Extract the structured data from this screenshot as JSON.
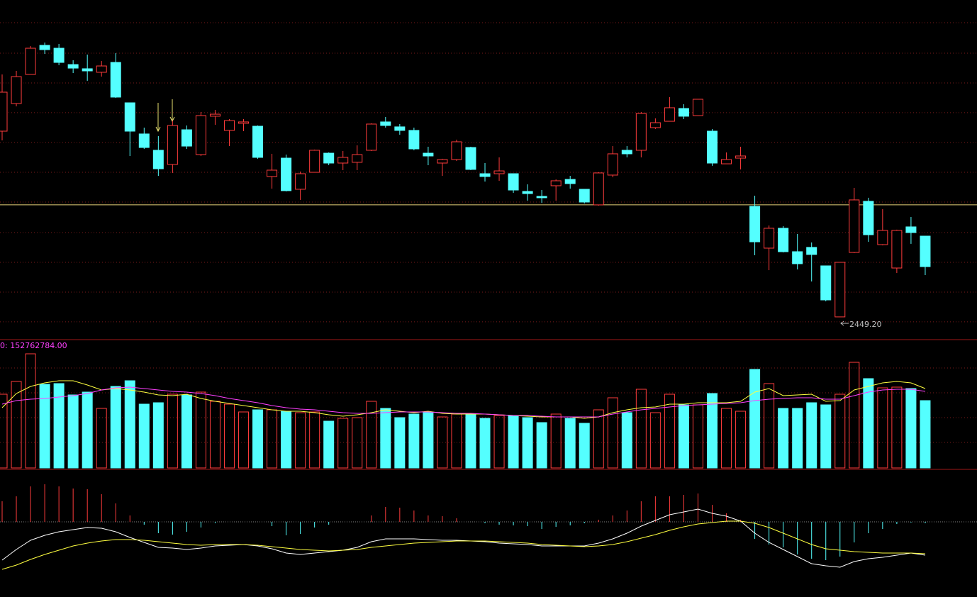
{
  "chart_data": [
    {
      "type": "candlestick",
      "ylim": [
        2428.7,
        2744.2
      ],
      "up_color": "#ff3c3c",
      "down_color": "#54ffff",
      "grid_lines": [
        2723.1,
        2694.7,
        2667.0,
        2639.3,
        2611.5,
        2583.8,
        2556.1,
        2527.7,
        2500.0,
        2472.3,
        2444.6
      ],
      "reference_line": 2553.5,
      "reference_color": "#e8d27a",
      "low_label": "2449.20",
      "open": [
        2622.1,
        2647.8,
        2674.9,
        2702.0,
        2699.3,
        2684.1,
        2680.2,
        2676.9,
        2686.1,
        2648.5,
        2619.5,
        2604.3,
        2591.1,
        2623.4,
        2600.3,
        2636.0,
        2622.8,
        2629.4,
        2626.7,
        2579.9,
        2597.0,
        2568.0,
        2583.8,
        2601.6,
        2592.4,
        2593.1,
        2604.3,
        2630.7,
        2626.1,
        2622.8,
        2601.6,
        2592.4,
        2595.7,
        2606.9,
        2582.5,
        2582.5,
        2582.5,
        2566.0,
        2561.4,
        2571.3,
        2577.2,
        2568.0,
        2553.5,
        2581.2,
        2604.3,
        2604.3,
        2625.4,
        2631.3,
        2643.2,
        2636.6,
        2622.1,
        2591.7,
        2597.0,
        2552.1,
        2513.2,
        2531.7,
        2509.9,
        2513.9,
        2496.7,
        2449.2,
        2509.2,
        2556.8,
        2516.5,
        2494.7,
        2533.0,
        2524.4
      ],
      "high": [
        2674.9,
        2678.2,
        2701.3,
        2704.6,
        2703.3,
        2688.1,
        2693.4,
        2687.4,
        2694.7,
        2648.5,
        2625.4,
        2617.5,
        2632.0,
        2627.4,
        2639.9,
        2641.9,
        2633.3,
        2633.3,
        2627.4,
        2601.0,
        2600.3,
        2584.5,
        2604.9,
        2602.3,
        2603.6,
        2608.9,
        2629.4,
        2635.3,
        2628.7,
        2625.4,
        2607.6,
        2596.4,
        2614.2,
        2607.6,
        2592.4,
        2597.7,
        2582.5,
        2572.6,
        2567.3,
        2577.2,
        2580.5,
        2568.0,
        2583.8,
        2608.2,
        2608.2,
        2639.9,
        2634.0,
        2653.8,
        2647.2,
        2651.8,
        2624.1,
        2602.3,
        2607.6,
        2562.0,
        2534.3,
        2533.7,
        2526.4,
        2518.5,
        2496.7,
        2500.0,
        2569.3,
        2560.1,
        2549.5,
        2530.4,
        2542.2,
        2524.4
      ],
      "low": [
        2613.5,
        2645.2,
        2674.9,
        2694.0,
        2683.5,
        2676.2,
        2669.0,
        2672.9,
        2653.1,
        2599.0,
        2605.6,
        2580.5,
        2583.2,
        2605.6,
        2599.0,
        2628.0,
        2608.2,
        2622.1,
        2596.4,
        2568.6,
        2566.0,
        2558.1,
        2583.8,
        2590.4,
        2585.8,
        2585.8,
        2603.6,
        2625.4,
        2618.8,
        2604.3,
        2590.4,
        2580.5,
        2594.4,
        2585.8,
        2575.2,
        2575.9,
        2564.7,
        2557.4,
        2555.4,
        2557.4,
        2568.6,
        2554.8,
        2552.8,
        2579.2,
        2597.7,
        2597.7,
        2624.1,
        2631.3,
        2633.3,
        2636.6,
        2589.8,
        2591.7,
        2586.5,
        2506.6,
        2492.7,
        2509.2,
        2493.4,
        2482.2,
        2463.7,
        2449.2,
        2508.6,
        2519.1,
        2515.8,
        2490.1,
        2517.2,
        2488.1
      ],
      "close": [
        2658.4,
        2672.9,
        2699.3,
        2698.0,
        2686.1,
        2680.8,
        2678.2,
        2682.8,
        2653.8,
        2622.1,
        2606.9,
        2587.1,
        2627.4,
        2608.2,
        2636.6,
        2637.9,
        2632.0,
        2630.7,
        2597.7,
        2585.8,
        2566.7,
        2582.5,
        2604.3,
        2592.4,
        2597.7,
        2600.3,
        2628.7,
        2627.4,
        2622.8,
        2605.6,
        2599.0,
        2595.7,
        2612.2,
        2586.5,
        2579.9,
        2585.1,
        2567.3,
        2564.0,
        2560.1,
        2575.9,
        2573.3,
        2556.1,
        2583.2,
        2601.0,
        2601.0,
        2638.6,
        2630.0,
        2643.9,
        2636.0,
        2651.8,
        2592.4,
        2595.7,
        2599.0,
        2519.1,
        2531.7,
        2509.9,
        2498.7,
        2507.3,
        2465.0,
        2500.0,
        2558.1,
        2525.7,
        2529.7,
        2529.7,
        2527.7,
        2496.0
      ]
    },
    {
      "type": "volume",
      "ylim": [
        0,
        289440000
      ],
      "label": "0: 152762784.00",
      "label_color": "#ff40ff",
      "grid_lines": [
        226728000,
        170448000,
        114168000,
        57888000
      ],
      "values": [
        167232000,
        196176000,
        258888000,
        189744000,
        191352000,
        165624000,
        172056000,
        135072000,
        184920000,
        197784000,
        144720000,
        147936000,
        167232000,
        165624000,
        172056000,
        151152000,
        144720000,
        127032000,
        131856000,
        131856000,
        128640000,
        125424000,
        127032000,
        106128000,
        112560000,
        114168000,
        151152000,
        135072000,
        114168000,
        122208000,
        125424000,
        115776000,
        122208000,
        122208000,
        112560000,
        118992000,
        118992000,
        114168000,
        102912000,
        122208000,
        112560000,
        101304000,
        131856000,
        159192000,
        125424000,
        178488000,
        125424000,
        167232000,
        143112000,
        143112000,
        168840000,
        135072000,
        128640000,
        223512000,
        191352000,
        135072000,
        135072000,
        147936000,
        143112000,
        167232000,
        239592000,
        202608000,
        181704000,
        183312000,
        180096000,
        152762784
      ],
      "series": [
        {
          "color": "#ffff40",
          "values": [
            136680000,
            168840000,
            184920000,
            192960000,
            197784000,
            197784000,
            188136000,
            176880000,
            180096000,
            176880000,
            172056000,
            165624000,
            164016000,
            167232000,
            157584000,
            151152000,
            146328000,
            141504000,
            136680000,
            131856000,
            128640000,
            128640000,
            125424000,
            120600000,
            117384000,
            120600000,
            125424000,
            131856000,
            128640000,
            125424000,
            128640000,
            123816000,
            122208000,
            122208000,
            122208000,
            120600000,
            118992000,
            117384000,
            115776000,
            115776000,
            115776000,
            112560000,
            115776000,
            125424000,
            131856000,
            136680000,
            138288000,
            144720000,
            144720000,
            147936000,
            147936000,
            147936000,
            151152000,
            172056000,
            180096000,
            164016000,
            165624000,
            167232000,
            151152000,
            152760000,
            176880000,
            184920000,
            192960000,
            196176000,
            192960000,
            180096000
          ]
        },
        {
          "color": "#ff40ff",
          "values": [
            144720000,
            152760000,
            155976000,
            157584000,
            160800000,
            164016000,
            168840000,
            176880000,
            181704000,
            183312000,
            180096000,
            176880000,
            173664000,
            172056000,
            168840000,
            164016000,
            157584000,
            152760000,
            147936000,
            141504000,
            136680000,
            133464000,
            131856000,
            128640000,
            125424000,
            123816000,
            123816000,
            125424000,
            127032000,
            127032000,
            127032000,
            125424000,
            123816000,
            123816000,
            122208000,
            120600000,
            118992000,
            118992000,
            117384000,
            115776000,
            115776000,
            115776000,
            115776000,
            122208000,
            127032000,
            131856000,
            135072000,
            138288000,
            141504000,
            143112000,
            144720000,
            146328000,
            147936000,
            152760000,
            155976000,
            157584000,
            159192000,
            159192000,
            155976000,
            155976000,
            164016000,
            172056000,
            176880000,
            178488000,
            178488000,
            173664000
          ]
        }
      ]
    },
    {
      "type": "macd",
      "ylim": [
        -53,
        36
      ],
      "histogram": [
        14.5,
        18,
        25,
        26.5,
        25,
        23.5,
        23,
        19.5,
        13,
        4.5,
        -2,
        -8,
        -9,
        -7,
        -4,
        -1,
        0,
        0,
        0,
        -3,
        -9.5,
        -8.5,
        -4,
        -2,
        0,
        0,
        4.5,
        10.5,
        10,
        8,
        4.5,
        4,
        2.5,
        0,
        -1,
        -2,
        -2.5,
        -3,
        -5,
        -3.5,
        -2.5,
        -1,
        1.5,
        4.5,
        8,
        14.5,
        18,
        18,
        19,
        20,
        12,
        6,
        1.5,
        -12,
        -16,
        -18,
        -23,
        -26,
        -27,
        -24.5,
        -14.5,
        -8,
        -5,
        -1.5,
        -0.5,
        -1
      ],
      "series": [
        {
          "color": "#ffffff",
          "values": [
            -27,
            -19.5,
            -13,
            -9.5,
            -7,
            -5.5,
            -4,
            -4.5,
            -7,
            -11,
            -14.5,
            -18,
            -18.5,
            -19.5,
            -18.5,
            -17,
            -16.5,
            -16,
            -17,
            -19,
            -22,
            -23,
            -22,
            -21,
            -20,
            -18,
            -14,
            -12,
            -12,
            -12,
            -12.5,
            -13,
            -13,
            -13.5,
            -14,
            -15,
            -15.5,
            -16,
            -17,
            -17,
            -17,
            -17,
            -15,
            -12,
            -8,
            -3,
            1,
            5,
            7,
            9,
            6,
            4,
            0.5,
            -8,
            -14.5,
            -19.5,
            -24.5,
            -29.5,
            -31,
            -32,
            -28,
            -26,
            -25,
            -23.5,
            -22,
            -23.5
          ]
        },
        {
          "color": "#ffff40",
          "values": [
            -33.5,
            -30.5,
            -26.5,
            -23,
            -20,
            -17,
            -15,
            -13.5,
            -12.5,
            -12.5,
            -13,
            -14,
            -15,
            -16,
            -16.5,
            -16,
            -16,
            -16,
            -16.5,
            -17.5,
            -18.5,
            -19.5,
            -20,
            -20.5,
            -20,
            -19.5,
            -18,
            -17,
            -16,
            -15,
            -14.5,
            -14,
            -13.5,
            -13.5,
            -13.5,
            -14,
            -14.5,
            -15,
            -16,
            -16.5,
            -17,
            -17.5,
            -17,
            -16,
            -14,
            -11.5,
            -9,
            -6,
            -3.5,
            -1.5,
            -0.5,
            0.5,
            0.5,
            -1,
            -4,
            -8,
            -12,
            -16,
            -19,
            -20,
            -21,
            -21.5,
            -22,
            -22,
            -22,
            -22.5
          ]
        }
      ]
    }
  ]
}
